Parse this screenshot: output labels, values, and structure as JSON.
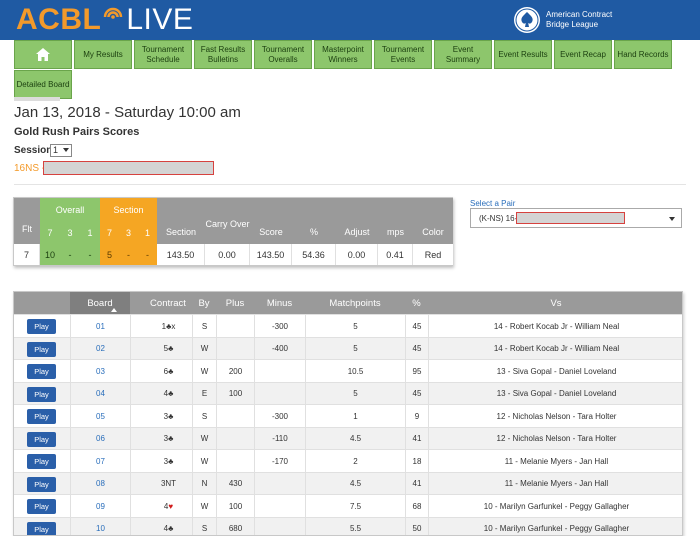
{
  "header": {
    "logo_acbl": "ACBL",
    "logo_live": "LIVE",
    "org_name": "American Contract Bridge League"
  },
  "nav": {
    "items": [
      {
        "label": "My Results"
      },
      {
        "label": "Tournament Schedule"
      },
      {
        "label": "Fast Results Bulletins"
      },
      {
        "label": "Tournament Overalls"
      },
      {
        "label": "Masterpoint Winners"
      },
      {
        "label": "Tournament Events"
      },
      {
        "label": "Event Summary"
      },
      {
        "label": "Event Results"
      },
      {
        "label": "Event Recap"
      },
      {
        "label": "Hand Records"
      },
      {
        "label": "Detailed Board"
      }
    ]
  },
  "page": {
    "title": "Jan 13, 2018 - Saturday 10:00 am",
    "subtitle": "Gold Rush Pairs Scores",
    "session_label": "Session",
    "session_value": "1",
    "pair_prefix": "16NS -"
  },
  "summary": {
    "headers": {
      "flt": "Flt",
      "overall": "Overall",
      "section": "Section",
      "sub": [
        "7",
        "3",
        "1",
        "7",
        "3",
        "1"
      ],
      "section_score": "Section",
      "carry_over": "Carry Over",
      "score": "Score",
      "pct": "%",
      "adjust": "Adjust",
      "mps": "mps",
      "color": "Color"
    },
    "row": {
      "flt": "7",
      "o7": "10",
      "o3": "-",
      "o1": "-",
      "s7": "5",
      "s3": "-",
      "s1": "-",
      "section": "143.50",
      "carry_over": "0.00",
      "score": "143.50",
      "pct": "54.36",
      "adjust": "0.00",
      "mps": "0.41",
      "color": "Red"
    }
  },
  "pair_select": {
    "label": "Select a Pair",
    "value_prefix": "(K-NS) 16-"
  },
  "boards": {
    "columns": {
      "board": "Board",
      "contract": "Contract",
      "by": "By",
      "plus": "Plus",
      "minus": "Minus",
      "matchpoints": "Matchpoints",
      "pct": "%",
      "vs": "Vs"
    },
    "play_label": "Play",
    "rows": [
      {
        "board": "01",
        "level": "1",
        "suit": "♣",
        "suit_red": false,
        "dbl": "x",
        "by": "S",
        "plus": "",
        "minus": "-300",
        "mp": "5",
        "pct": "45",
        "vs": "14 - Robert Kocab Jr - William Neal"
      },
      {
        "board": "02",
        "level": "5",
        "suit": "♣",
        "suit_red": false,
        "dbl": "",
        "by": "W",
        "plus": "",
        "minus": "-400",
        "mp": "5",
        "pct": "45",
        "vs": "14 - Robert Kocab Jr - William Neal"
      },
      {
        "board": "03",
        "level": "6",
        "suit": "♣",
        "suit_red": false,
        "dbl": "",
        "by": "W",
        "plus": "200",
        "minus": "",
        "mp": "10.5",
        "pct": "95",
        "vs": "13 - Siva Gopal - Daniel Loveland"
      },
      {
        "board": "04",
        "level": "4",
        "suit": "♣",
        "suit_red": false,
        "dbl": "",
        "by": "E",
        "plus": "100",
        "minus": "",
        "mp": "5",
        "pct": "45",
        "vs": "13 - Siva Gopal - Daniel Loveland"
      },
      {
        "board": "05",
        "level": "3",
        "suit": "♣",
        "suit_red": false,
        "dbl": "",
        "by": "S",
        "plus": "",
        "minus": "-300",
        "mp": "1",
        "pct": "9",
        "vs": "12 - Nicholas Nelson - Tara Holter"
      },
      {
        "board": "06",
        "level": "3",
        "suit": "♣",
        "suit_red": false,
        "dbl": "",
        "by": "W",
        "plus": "",
        "minus": "-110",
        "mp": "4.5",
        "pct": "41",
        "vs": "12 - Nicholas Nelson - Tara Holter"
      },
      {
        "board": "07",
        "level": "3",
        "suit": "♣",
        "suit_red": false,
        "dbl": "",
        "by": "W",
        "plus": "",
        "minus": "-170",
        "mp": "2",
        "pct": "18",
        "vs": "11 - Melanie Myers - Jan Hall"
      },
      {
        "board": "08",
        "level": "3NT",
        "suit": "",
        "suit_red": false,
        "dbl": "",
        "by": "N",
        "plus": "430",
        "minus": "",
        "mp": "4.5",
        "pct": "41",
        "vs": "11 - Melanie Myers - Jan Hall"
      },
      {
        "board": "09",
        "level": "4",
        "suit": "♥",
        "suit_red": true,
        "dbl": "",
        "by": "W",
        "plus": "100",
        "minus": "",
        "mp": "7.5",
        "pct": "68",
        "vs": "10 - Marilyn Garfunkel - Peggy Gallagher"
      },
      {
        "board": "10",
        "level": "4",
        "suit": "♣",
        "suit_red": false,
        "dbl": "",
        "by": "S",
        "plus": "680",
        "minus": "",
        "mp": "5.5",
        "pct": "50",
        "vs": "10 - Marilyn Garfunkel - Peggy Gallagher"
      }
    ]
  },
  "colors": {
    "topbar": "#1f5aa3",
    "accent_orange": "#f39a2b",
    "nav_green": "#8dc66c",
    "section_orange": "#f5a623",
    "header_gray": "#9a9a9a",
    "play_blue": "#2a5fa9"
  }
}
